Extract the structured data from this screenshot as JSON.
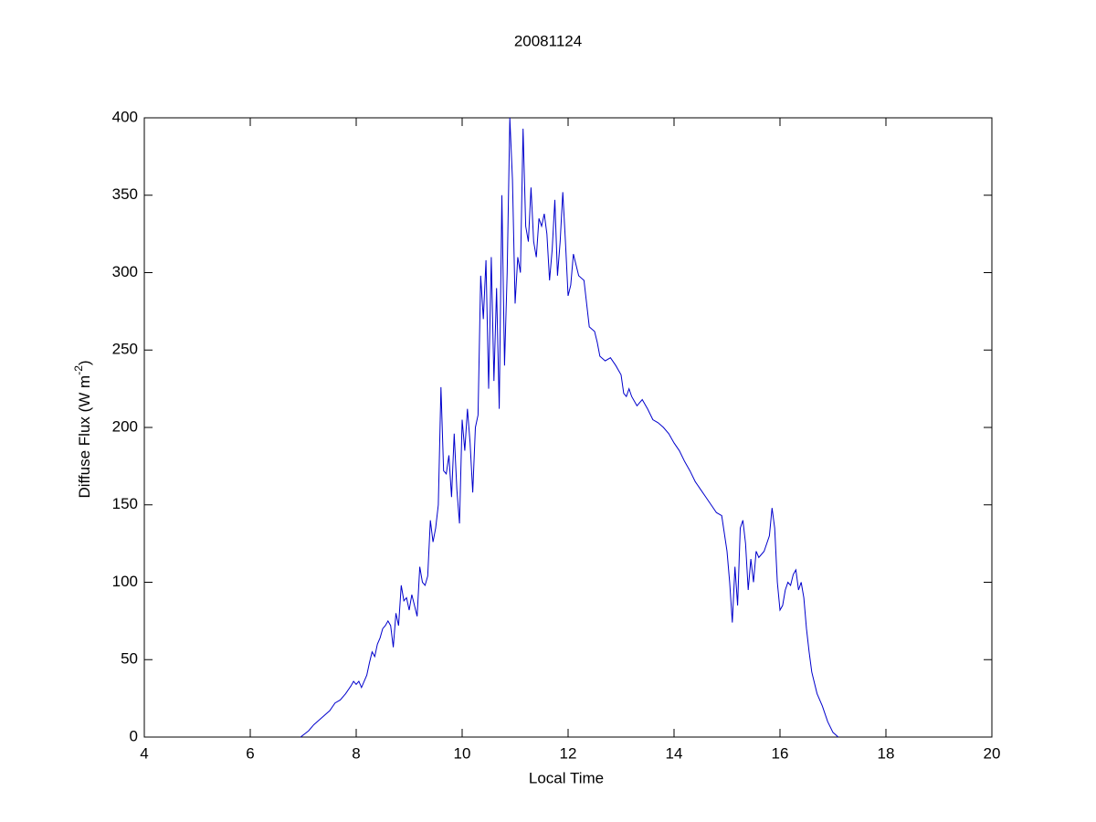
{
  "chart_data": {
    "type": "line",
    "title": "20081124",
    "xlabel": "Local Time",
    "ylabel": {
      "text": "Diffuse Flux (W m",
      "superscript": "-2",
      "suffix": ")"
    },
    "xlim": [
      4,
      20
    ],
    "xticks": [
      4,
      6,
      8,
      10,
      12,
      14,
      16,
      18,
      20
    ],
    "ylim": [
      0,
      400
    ],
    "yticks": [
      0,
      50,
      100,
      150,
      200,
      250,
      300,
      350,
      400
    ],
    "grid": false,
    "series": [
      {
        "color": "#0000cc",
        "x": [
          6.95,
          7.1,
          7.2,
          7.3,
          7.4,
          7.5,
          7.6,
          7.7,
          7.8,
          7.9,
          7.95,
          8.0,
          8.05,
          8.1,
          8.2,
          8.25,
          8.3,
          8.35,
          8.4,
          8.45,
          8.5,
          8.55,
          8.6,
          8.65,
          8.7,
          8.75,
          8.8,
          8.85,
          8.9,
          8.95,
          9.0,
          9.05,
          9.1,
          9.15,
          9.2,
          9.25,
          9.3,
          9.35,
          9.4,
          9.45,
          9.5,
          9.55,
          9.6,
          9.65,
          9.7,
          9.75,
          9.8,
          9.85,
          9.9,
          9.95,
          10.0,
          10.05,
          10.1,
          10.15,
          10.2,
          10.25,
          10.3,
          10.35,
          10.4,
          10.45,
          10.5,
          10.55,
          10.6,
          10.65,
          10.7,
          10.75,
          10.8,
          10.85,
          10.9,
          10.95,
          11.0,
          11.05,
          11.1,
          11.15,
          11.2,
          11.25,
          11.3,
          11.35,
          11.4,
          11.45,
          11.5,
          11.55,
          11.6,
          11.65,
          11.7,
          11.75,
          11.8,
          11.85,
          11.9,
          11.95,
          12.0,
          12.05,
          12.1,
          12.15,
          12.2,
          12.3,
          12.4,
          12.5,
          12.55,
          12.6,
          12.7,
          12.8,
          12.9,
          13.0,
          13.05,
          13.1,
          13.15,
          13.2,
          13.3,
          13.4,
          13.5,
          13.6,
          13.7,
          13.8,
          13.9,
          14.0,
          14.1,
          14.2,
          14.3,
          14.4,
          14.5,
          14.6,
          14.7,
          14.8,
          14.9,
          15.0,
          15.05,
          15.1,
          15.15,
          15.2,
          15.25,
          15.3,
          15.35,
          15.4,
          15.45,
          15.5,
          15.55,
          15.6,
          15.7,
          15.8,
          15.85,
          15.9,
          15.95,
          16.0,
          16.05,
          16.1,
          16.15,
          16.2,
          16.25,
          16.3,
          16.35,
          16.4,
          16.45,
          16.5,
          16.55,
          16.6,
          16.7,
          16.8,
          16.9,
          17.0,
          17.1
        ],
        "values": [
          0,
          4,
          8,
          11,
          14,
          17,
          22,
          24,
          28,
          33,
          36,
          34,
          36,
          32,
          40,
          48,
          55,
          52,
          60,
          64,
          70,
          72,
          75,
          72,
          58,
          80,
          72,
          98,
          88,
          90,
          82,
          92,
          85,
          78,
          110,
          100,
          98,
          104,
          140,
          126,
          135,
          150,
          226,
          172,
          170,
          182,
          155,
          196,
          160,
          138,
          205,
          185,
          212,
          190,
          158,
          200,
          208,
          298,
          270,
          308,
          225,
          310,
          230,
          290,
          212,
          350,
          240,
          300,
          400,
          360,
          280,
          310,
          300,
          393,
          330,
          320,
          355,
          320,
          310,
          335,
          330,
          338,
          325,
          295,
          315,
          347,
          298,
          320,
          352,
          320,
          285,
          292,
          312,
          305,
          298,
          295,
          265,
          262,
          255,
          246,
          243,
          245,
          240,
          234,
          222,
          220,
          225,
          220,
          214,
          218,
          212,
          205,
          203,
          200,
          196,
          190,
          185,
          178,
          172,
          165,
          160,
          155,
          150,
          145,
          143,
          120,
          100,
          74,
          110,
          85,
          135,
          140,
          125,
          95,
          115,
          100,
          120,
          116,
          120,
          130,
          148,
          135,
          100,
          82,
          85,
          95,
          100,
          98,
          105,
          108,
          95,
          100,
          90,
          70,
          55,
          42,
          28,
          20,
          10,
          3,
          0
        ]
      }
    ]
  }
}
